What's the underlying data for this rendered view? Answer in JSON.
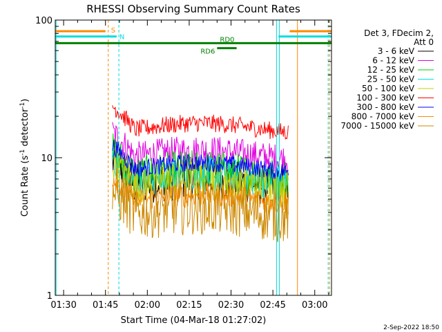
{
  "chart_data": {
    "type": "line",
    "title": "RHESSI Observing Summary Count Rates",
    "xlabel": "Start Time (04-Mar-18 01:27:02)",
    "ylabel_main": "Count Rate (s",
    "ylabel_sup1": "-1",
    "ylabel_mid": " detector",
    "ylabel_sup2": "-1",
    "ylabel_end": ")",
    "y_scale": "log",
    "ylim": [
      1,
      100
    ],
    "xlim_minutes": [
      87,
      186
    ],
    "x_ticks": [
      {
        "min": 90,
        "label": "01:30"
      },
      {
        "min": 105,
        "label": "01:45"
      },
      {
        "min": 120,
        "label": "02:00"
      },
      {
        "min": 135,
        "label": "02:15"
      },
      {
        "min": 150,
        "label": "02:30"
      },
      {
        "min": 165,
        "label": "02:45"
      },
      {
        "min": 180,
        "label": "03:00"
      }
    ],
    "y_ticks": [
      {
        "value": 1,
        "label": "1"
      },
      {
        "value": 10,
        "label": "10"
      },
      {
        "value": 100,
        "label": "100"
      }
    ],
    "legend_header": [
      "Det 3, FDecim 2,",
      "Att 0"
    ],
    "legend_position": "right",
    "series": [
      {
        "name": "3 - 6 keV",
        "color": "#000000",
        "level": 6.5,
        "noise": 0.35
      },
      {
        "name": "6 - 12 keV",
        "color": "#e000e0",
        "level": 10.5,
        "noise": 0.25
      },
      {
        "name": "12 - 25 keV",
        "color": "#00cc00",
        "level": 7.5,
        "noise": 0.35
      },
      {
        "name": "25 - 50 keV",
        "color": "#00dddd",
        "level": 7.0,
        "noise": 0.3
      },
      {
        "name": "50 - 100 keV",
        "color": "#cccc00",
        "level": 6.5,
        "noise": 0.35
      },
      {
        "name": "100 - 300 keV",
        "color": "#ff0000",
        "level": 16.5,
        "noise": 0.15
      },
      {
        "name": "300 - 800 keV",
        "color": "#0000ff",
        "level": 8.5,
        "noise": 0.15
      },
      {
        "name": "800 - 7000 keV",
        "color": "#ff8800",
        "level": 5.0,
        "noise": 0.2
      },
      {
        "name": "7000 - 15000 keV",
        "color": "#cc8800",
        "level": 4.0,
        "noise": 0.45
      }
    ],
    "data_start_min": 107.5,
    "data_end_min": 170.5,
    "initial_peak_factor": 1.55,
    "flag_lines": [
      {
        "label": "S",
        "color": "#ff8800",
        "y_value": 83.0,
        "segments": [
          [
            87,
            105
          ],
          [
            171,
            186
          ]
        ]
      },
      {
        "label": "N",
        "color": "#00dddd",
        "y_value": 76.0,
        "segments": [
          [
            87,
            109
          ],
          [
            167,
            186
          ]
        ]
      },
      {
        "label": "RD0",
        "color": "#008000",
        "y_value": 68.0,
        "segments": [
          [
            87,
            186
          ]
        ]
      },
      {
        "label": "RD6",
        "color": "#008000",
        "y_value": 62.5,
        "segments": [
          [
            145,
            152
          ]
        ]
      }
    ],
    "vertical_markers": [
      {
        "min": 87.3,
        "color": "#00dddd",
        "style": "solid"
      },
      {
        "min": 106.0,
        "color": "#ff8800",
        "style": "dashed"
      },
      {
        "min": 109.8,
        "color": "#00dddd",
        "style": "dashed"
      },
      {
        "min": 166.3,
        "color": "#00dddd",
        "style": "solid"
      },
      {
        "min": 167.3,
        "color": "#00dddd",
        "style": "solid"
      },
      {
        "min": 173.8,
        "color": "#ff8800",
        "style": "solid"
      },
      {
        "min": 184.8,
        "color": "#00dddd",
        "style": "dashed"
      },
      {
        "min": 185.3,
        "color": "#ff8800",
        "style": "dashed"
      }
    ]
  },
  "footer_timestamp": "2-Sep-2022 18:50"
}
